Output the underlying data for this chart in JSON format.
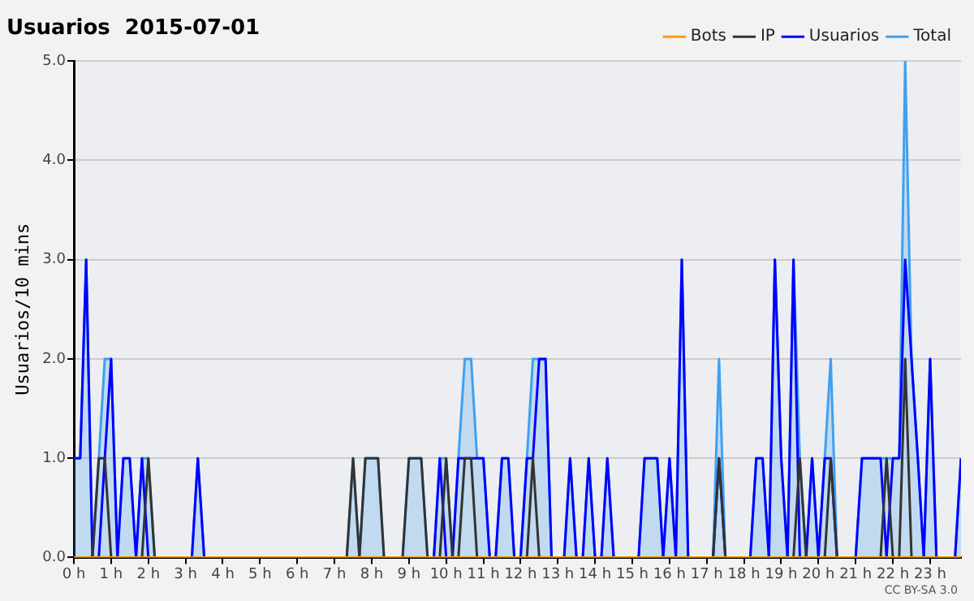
{
  "chart_data": {
    "type": "line",
    "title": "Usuarios  2015-07-01",
    "ylabel": "Usuarios/10 mins",
    "annotations": [
      "CC BY-SA 3.0"
    ],
    "x": [
      0,
      0.17,
      0.33,
      0.5,
      0.67,
      0.83,
      1,
      1.17,
      1.33,
      1.5,
      1.67,
      1.83,
      2,
      2.17,
      2.33,
      2.5,
      2.67,
      2.83,
      3,
      3.17,
      3.33,
      3.5,
      3.67,
      3.83,
      4,
      4.17,
      4.33,
      4.5,
      4.67,
      4.83,
      5,
      5.17,
      5.33,
      5.5,
      5.67,
      5.83,
      6,
      6.17,
      6.33,
      6.5,
      6.67,
      6.83,
      7,
      7.17,
      7.33,
      7.5,
      7.67,
      7.83,
      8,
      8.17,
      8.33,
      8.5,
      8.67,
      8.83,
      9,
      9.17,
      9.33,
      9.5,
      9.67,
      9.83,
      10,
      10.17,
      10.33,
      10.5,
      10.67,
      10.83,
      11,
      11.17,
      11.33,
      11.5,
      11.67,
      11.83,
      12,
      12.17,
      12.33,
      12.5,
      12.67,
      12.83,
      13,
      13.17,
      13.33,
      13.5,
      13.67,
      13.83,
      14,
      14.17,
      14.33,
      14.5,
      14.67,
      14.83,
      15,
      15.17,
      15.33,
      15.5,
      15.67,
      15.83,
      16,
      16.17,
      16.33,
      16.5,
      16.67,
      16.83,
      17,
      17.17,
      17.33,
      17.5,
      17.67,
      17.83,
      18,
      18.17,
      18.33,
      18.5,
      18.67,
      18.83,
      19,
      19.17,
      19.33,
      19.5,
      19.67,
      19.83,
      20,
      20.17,
      20.33,
      20.5,
      20.67,
      20.83,
      21,
      21.17,
      21.33,
      21.5,
      21.67,
      21.83,
      22,
      22.17,
      22.33,
      22.5,
      22.67,
      22.83,
      23,
      23.17,
      23.33,
      23.5,
      23.67,
      23.83
    ],
    "series": [
      {
        "name": "Total",
        "type": "area",
        "color": "#3fa0f0",
        "values": [
          1,
          1,
          3,
          0,
          1,
          2,
          2,
          0,
          1,
          1,
          0,
          1,
          1,
          0,
          0,
          0,
          0,
          0,
          0,
          0,
          1,
          0,
          0,
          0,
          0,
          0,
          0,
          0,
          0,
          0,
          0,
          0,
          0,
          0,
          0,
          0,
          0,
          0,
          0,
          0,
          0,
          0,
          0,
          0,
          0,
          1,
          0,
          1,
          1,
          1,
          0,
          0,
          0,
          0,
          1,
          1,
          1,
          0,
          0,
          1,
          1,
          0,
          1,
          2,
          2,
          1,
          1,
          0,
          0,
          1,
          1,
          0,
          0,
          1,
          2,
          2,
          2,
          0,
          0,
          0,
          1,
          0,
          0,
          1,
          0,
          0,
          1,
          0,
          0,
          0,
          0,
          0,
          1,
          1,
          1,
          0,
          1,
          0,
          3,
          0,
          0,
          0,
          0,
          0,
          2,
          0,
          0,
          0,
          0,
          0,
          1,
          1,
          0,
          3,
          1,
          0,
          3,
          1,
          0,
          1,
          0,
          1,
          2,
          0,
          0,
          0,
          0,
          1,
          1,
          1,
          1,
          1,
          1,
          1,
          5,
          2,
          1,
          0,
          2,
          0,
          0,
          0,
          0,
          1
        ]
      },
      {
        "name": "Usuarios",
        "color": "#0000ff",
        "values": [
          1,
          1,
          3,
          0,
          0,
          1,
          2,
          0,
          1,
          1,
          0,
          1,
          0,
          0,
          0,
          0,
          0,
          0,
          0,
          0,
          1,
          0,
          0,
          0,
          0,
          0,
          0,
          0,
          0,
          0,
          0,
          0,
          0,
          0,
          0,
          0,
          0,
          0,
          0,
          0,
          0,
          0,
          0,
          0,
          0,
          0,
          0,
          0,
          0,
          0,
          0,
          0,
          0,
          0,
          0,
          0,
          0,
          0,
          0,
          1,
          0,
          0,
          1,
          1,
          1,
          1,
          1,
          0,
          0,
          1,
          1,
          0,
          0,
          1,
          1,
          2,
          2,
          0,
          0,
          0,
          1,
          0,
          0,
          1,
          0,
          0,
          1,
          0,
          0,
          0,
          0,
          0,
          1,
          1,
          1,
          0,
          1,
          0,
          3,
          0,
          0,
          0,
          0,
          0,
          1,
          0,
          0,
          0,
          0,
          0,
          1,
          1,
          0,
          3,
          1,
          0,
          3,
          0,
          0,
          1,
          0,
          1,
          1,
          0,
          0,
          0,
          0,
          1,
          1,
          1,
          1,
          0,
          1,
          1,
          3,
          2,
          1,
          0,
          2,
          0,
          0,
          0,
          0,
          1
        ]
      },
      {
        "name": "IP",
        "color": "#333333",
        "values": [
          0,
          0,
          0,
          0,
          1,
          1,
          0,
          0,
          0,
          0,
          0,
          0,
          1,
          0,
          0,
          0,
          0,
          0,
          0,
          0,
          0,
          0,
          0,
          0,
          0,
          0,
          0,
          0,
          0,
          0,
          0,
          0,
          0,
          0,
          0,
          0,
          0,
          0,
          0,
          0,
          0,
          0,
          0,
          0,
          0,
          1,
          0,
          1,
          1,
          1,
          0,
          0,
          0,
          0,
          1,
          1,
          1,
          0,
          0,
          0,
          1,
          0,
          0,
          1,
          1,
          0,
          0,
          0,
          0,
          0,
          0,
          0,
          0,
          0,
          1,
          0,
          0,
          0,
          0,
          0,
          0,
          0,
          0,
          0,
          0,
          0,
          0,
          0,
          0,
          0,
          0,
          0,
          0,
          0,
          0,
          0,
          0,
          0,
          0,
          0,
          0,
          0,
          0,
          0,
          1,
          0,
          0,
          0,
          0,
          0,
          0,
          0,
          0,
          0,
          0,
          0,
          0,
          1,
          0,
          0,
          0,
          0,
          1,
          0,
          0,
          0,
          0,
          0,
          0,
          0,
          0,
          1,
          0,
          0,
          2,
          0,
          0,
          0,
          0,
          0,
          0,
          0,
          0,
          0
        ]
      },
      {
        "name": "Bots",
        "color": "#ff9900",
        "values": [
          0,
          0,
          0,
          0,
          0,
          0,
          0,
          0,
          0,
          0,
          0,
          0,
          0,
          0,
          0,
          0,
          0,
          0,
          0,
          0,
          0,
          0,
          0,
          0,
          0,
          0,
          0,
          0,
          0,
          0,
          0,
          0,
          0,
          0,
          0,
          0,
          0,
          0,
          0,
          0,
          0,
          0,
          0,
          0,
          0,
          0,
          0,
          0,
          0,
          0,
          0,
          0,
          0,
          0,
          0,
          0,
          0,
          0,
          0,
          0,
          0,
          0,
          0,
          0,
          0,
          0,
          0,
          0,
          0,
          0,
          0,
          0,
          0,
          0,
          0,
          0,
          0,
          0,
          0,
          0,
          0,
          0,
          0,
          0,
          0,
          0,
          0,
          0,
          0,
          0,
          0,
          0,
          0,
          0,
          0,
          0,
          0,
          0,
          0,
          0,
          0,
          0,
          0,
          0,
          0,
          0,
          0,
          0,
          0,
          0,
          0,
          0,
          0,
          0,
          0,
          0,
          0,
          0,
          0,
          0,
          0,
          0,
          0,
          0,
          0,
          0,
          0,
          0,
          0,
          0,
          0,
          0,
          0,
          0,
          0,
          0,
          0,
          0,
          0,
          0,
          0,
          0,
          0,
          0
        ]
      }
    ],
    "xlim": [
      0,
      23.83
    ],
    "xticks": [
      {
        "value": 0,
        "label": "0 h"
      },
      {
        "value": 1,
        "label": "1 h"
      },
      {
        "value": 2,
        "label": "2 h"
      },
      {
        "value": 3,
        "label": "3 h"
      },
      {
        "value": 4,
        "label": "4 h"
      },
      {
        "value": 5,
        "label": "5 h"
      },
      {
        "value": 6,
        "label": "6 h"
      },
      {
        "value": 7,
        "label": "7 h"
      },
      {
        "value": 8,
        "label": "8 h"
      },
      {
        "value": 9,
        "label": "9 h"
      },
      {
        "value": 10,
        "label": "10 h"
      },
      {
        "value": 11,
        "label": "11 h"
      },
      {
        "value": 12,
        "label": "12 h"
      },
      {
        "value": 13,
        "label": "13 h"
      },
      {
        "value": 14,
        "label": "14 h"
      },
      {
        "value": 15,
        "label": "15 h"
      },
      {
        "value": 16,
        "label": "16 h"
      },
      {
        "value": 17,
        "label": "17 h"
      },
      {
        "value": 18,
        "label": "18 h"
      },
      {
        "value": 19,
        "label": "19 h"
      },
      {
        "value": 20,
        "label": "20 h"
      },
      {
        "value": 21,
        "label": "21 h"
      },
      {
        "value": 22,
        "label": "22 h"
      },
      {
        "value": 23,
        "label": "23 h"
      }
    ],
    "ylim": [
      0,
      5
    ],
    "yticks": [
      {
        "value": 0,
        "label": "0.0"
      },
      {
        "value": 1,
        "label": "1.0"
      },
      {
        "value": 2,
        "label": "2.0"
      },
      {
        "value": 3,
        "label": "3.0"
      },
      {
        "value": 4,
        "label": "4.0"
      },
      {
        "value": 5,
        "label": "5.0"
      }
    ],
    "grid": "y",
    "legend": "top right",
    "marker": "none",
    "line_style": "solid"
  }
}
